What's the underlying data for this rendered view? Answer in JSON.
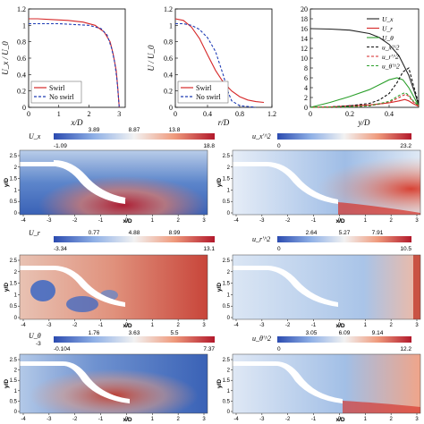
{
  "chart_data": [
    {
      "type": "line",
      "xlabel": "x/D",
      "ylabel": "U_x / U_0",
      "xlim": [
        0,
        3.2
      ],
      "ylim": [
        0,
        1.2
      ],
      "xticks": [
        "0",
        "1",
        "2",
        "3"
      ],
      "yticks": [
        "0",
        "0.2",
        "0.4",
        "0.6",
        "0.8",
        "1",
        "1.2"
      ],
      "legend_position": "bottom-left",
      "series": [
        {
          "name": "Swirl",
          "color": "#d62728",
          "dash": "solid",
          "x": [
            0,
            0.3,
            0.8,
            1.3,
            1.8,
            2.2,
            2.5,
            2.7,
            2.8,
            2.9,
            2.95,
            3.0
          ],
          "y": [
            1.08,
            1.08,
            1.07,
            1.06,
            1.04,
            1.0,
            0.92,
            0.8,
            0.65,
            0.45,
            0.25,
            0.0
          ]
        },
        {
          "name": "No swirl",
          "color": "#1f3cb5",
          "dash": "dashed",
          "x": [
            0,
            0.5,
            1.0,
            1.5,
            2.0,
            2.4,
            2.6,
            2.75,
            2.85,
            2.92,
            2.97,
            3.0
          ],
          "y": [
            1.02,
            1.02,
            1.02,
            1.01,
            1.0,
            0.96,
            0.88,
            0.72,
            0.55,
            0.35,
            0.15,
            0.0
          ]
        }
      ]
    },
    {
      "type": "line",
      "xlabel": "r/D",
      "ylabel": "U / U_0",
      "xlim": [
        0,
        1.2
      ],
      "ylim": [
        0,
        1.2
      ],
      "xticks": [
        "0",
        "0.4",
        "0.8",
        "1.2"
      ],
      "yticks": [
        "0",
        "0.2",
        "0.4",
        "0.6",
        "0.8",
        "1",
        "1.2"
      ],
      "legend_position": "bottom-left",
      "series": [
        {
          "name": "Swirl",
          "color": "#d62728",
          "dash": "solid",
          "x": [
            0,
            0.1,
            0.2,
            0.3,
            0.4,
            0.5,
            0.6,
            0.7,
            0.8,
            0.9,
            1.0,
            1.1
          ],
          "y": [
            1.08,
            1.06,
            0.98,
            0.84,
            0.64,
            0.45,
            0.3,
            0.2,
            0.13,
            0.09,
            0.07,
            0.06
          ]
        },
        {
          "name": "No swirl",
          "color": "#1f3cb5",
          "dash": "dashed",
          "x": [
            0,
            0.1,
            0.2,
            0.3,
            0.4,
            0.5,
            0.6,
            0.65,
            0.7,
            0.8,
            0.9,
            1.0
          ],
          "y": [
            1.02,
            1.02,
            1.0,
            0.95,
            0.85,
            0.68,
            0.38,
            0.2,
            0.08,
            0.02,
            0.01,
            0.0
          ]
        }
      ]
    },
    {
      "type": "line",
      "xlabel": "y/D",
      "ylabel": "",
      "xlim": [
        0,
        0.55
      ],
      "ylim": [
        0,
        20
      ],
      "xticks": [
        "0",
        "0.2",
        "0.4"
      ],
      "yticks": [
        "0",
        "2",
        "4",
        "6",
        "8",
        "10",
        "12",
        "14",
        "16",
        "18",
        "20"
      ],
      "legend_position": "top-right",
      "series": [
        {
          "name": "U_x",
          "color": "#222222",
          "dash": "solid",
          "x": [
            0,
            0.1,
            0.2,
            0.3,
            0.35,
            0.4,
            0.45,
            0.5,
            0.53,
            0.55
          ],
          "y": [
            16,
            15.9,
            15.7,
            15.0,
            14.2,
            12.8,
            10.5,
            6.5,
            3.0,
            0.5
          ]
        },
        {
          "name": "U_r",
          "color": "#d62728",
          "dash": "solid",
          "x": [
            0,
            0.1,
            0.2,
            0.3,
            0.4,
            0.45,
            0.48,
            0.5,
            0.52,
            0.55
          ],
          "y": [
            0,
            0.1,
            0.3,
            0.5,
            0.9,
            1.3,
            1.6,
            1.3,
            0.8,
            0.2
          ]
        },
        {
          "name": "U_θ",
          "color": "#2ca02c",
          "dash": "solid",
          "x": [
            0,
            0.1,
            0.2,
            0.3,
            0.35,
            0.4,
            0.44,
            0.47,
            0.5,
            0.53,
            0.55
          ],
          "y": [
            0,
            1.0,
            2.2,
            3.6,
            4.6,
            5.6,
            6.0,
            5.6,
            4.0,
            1.8,
            0.3
          ]
        },
        {
          "name": "u_x'^2",
          "color": "#111111",
          "dash": "dashed",
          "x": [
            0,
            0.1,
            0.2,
            0.3,
            0.35,
            0.4,
            0.44,
            0.47,
            0.5,
            0.52,
            0.55
          ],
          "y": [
            0,
            0.1,
            0.3,
            0.8,
            1.5,
            2.8,
            5.0,
            7.2,
            8.0,
            5.0,
            0.8
          ]
        },
        {
          "name": "u_r'^2",
          "color": "#d62728",
          "dash": "dashed",
          "x": [
            0,
            0.1,
            0.2,
            0.3,
            0.4,
            0.45,
            0.48,
            0.5,
            0.52,
            0.55
          ],
          "y": [
            0,
            0.05,
            0.1,
            0.3,
            1.0,
            2.0,
            2.6,
            2.3,
            1.2,
            0.3
          ]
        },
        {
          "name": "u_θ'^2",
          "color": "#2ca02c",
          "dash": "dashed",
          "x": [
            0,
            0.1,
            0.2,
            0.3,
            0.4,
            0.45,
            0.48,
            0.5,
            0.52,
            0.55
          ],
          "y": [
            0,
            0.05,
            0.1,
            0.3,
            1.2,
            2.4,
            3.0,
            2.5,
            1.4,
            0.3
          ]
        }
      ]
    },
    {
      "type": "heatmap",
      "field": "U_x",
      "colorbar_title": "U_x",
      "colorbar_min": "-1.09",
      "colorbar_max": "18.8",
      "colorbar_ticks": [
        "3.89",
        "8.87",
        "13.8"
      ],
      "xlabel": "x/D",
      "ylabel": "y/D",
      "xticks": [
        "-4",
        "-3",
        "-2",
        "-1",
        "0",
        "1",
        "2",
        "3"
      ],
      "yticks": [
        "0",
        "0.5",
        "1",
        "1.5",
        "2",
        "2.5"
      ]
    },
    {
      "type": "heatmap",
      "field": "u_x'^2",
      "colorbar_title": "u_x'^2",
      "colorbar_min": "0",
      "colorbar_max": "23.2",
      "colorbar_ticks": [],
      "xlabel": "x/D",
      "ylabel": "y/D",
      "xticks": [
        "-4",
        "-3",
        "-2",
        "-1",
        "0",
        "1",
        "2",
        "3"
      ],
      "yticks": [
        "0",
        "0.5",
        "1",
        "1.5",
        "2",
        "2.5"
      ]
    },
    {
      "type": "heatmap",
      "field": "U_r",
      "colorbar_title": "U_r",
      "colorbar_min": "-3.34",
      "colorbar_max": "13.1",
      "colorbar_ticks": [
        "0.77",
        "4.88",
        "8.99"
      ],
      "xlabel": "x/D",
      "ylabel": "y/D",
      "xticks": [
        "-4",
        "-3",
        "-2",
        "-1",
        "0",
        "1",
        "2",
        "3"
      ],
      "yticks": [
        "0",
        "0.5",
        "1",
        "1.5",
        "2",
        "2.5"
      ]
    },
    {
      "type": "heatmap",
      "field": "u_r'^2",
      "colorbar_title": "u_r'^2",
      "colorbar_min": "0",
      "colorbar_max": "10.5",
      "colorbar_ticks": [
        "2.64",
        "5.27",
        "7.91"
      ],
      "xlabel": "x/D",
      "ylabel": "y/D",
      "xticks": [
        "-4",
        "-3",
        "-2",
        "-1",
        "0",
        "1",
        "2",
        "3"
      ],
      "yticks": [
        "0",
        "0.5",
        "1",
        "1.5",
        "2",
        "2.5"
      ]
    },
    {
      "type": "heatmap",
      "field": "U_θ",
      "colorbar_title": "U_θ",
      "colorbar_min": "-0.104",
      "colorbar_max": "7.37",
      "colorbar_ticks": [
        "1.76",
        "3.63",
        "5.5"
      ],
      "colorbar_extra_label": "-3",
      "xlabel": "x/D",
      "ylabel": "y/D",
      "xticks": [
        "-4",
        "-3",
        "-2",
        "-1",
        "0",
        "1",
        "2",
        "3"
      ],
      "yticks": [
        "0",
        "0.5",
        "1",
        "1.5",
        "2",
        "2.5"
      ]
    },
    {
      "type": "heatmap",
      "field": "u_θ'^2",
      "colorbar_title": "u_θ'^2",
      "colorbar_min": "0",
      "colorbar_max": "12.2",
      "colorbar_ticks": [
        "3.05",
        "6.09",
        "9.14"
      ],
      "xlabel": "x/D",
      "ylabel": "y/D",
      "xticks": [
        "-4",
        "-3",
        "-2",
        "-1",
        "0",
        "1",
        "2",
        "3"
      ],
      "yticks": [
        "0",
        "0.5",
        "1",
        "1.5",
        "2",
        "2.5"
      ]
    }
  ]
}
